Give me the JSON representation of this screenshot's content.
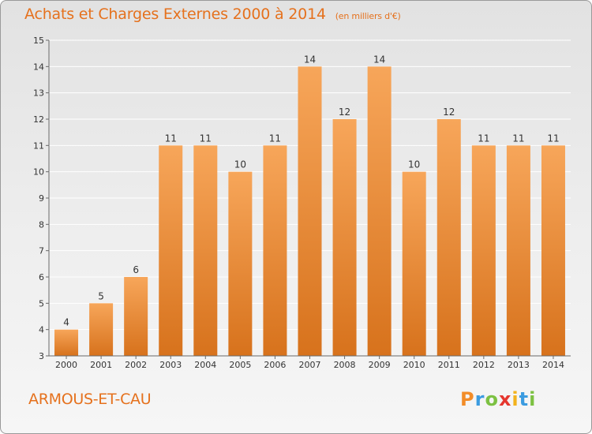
{
  "header": {
    "title": "Achats et Charges Externes 2000 à 2014",
    "subtitle": "(en milliers d'€)"
  },
  "footer": {
    "commune": "ARMOUS-ET-CAU",
    "logo": {
      "p": "P",
      "r": "r",
      "o": "o",
      "x": "x",
      "i1": "i",
      "t": "t",
      "i2": "i"
    }
  },
  "colors": {
    "title": "#e5711d",
    "bar_top": "#f7a65a",
    "bar_bottom": "#d7721c",
    "axis": "#6a6a6a",
    "grid": "#ffffff"
  },
  "chart_data": {
    "type": "bar",
    "title": "Achats et Charges Externes 2000 à 2014",
    "subtitle": "(en milliers d'€)",
    "categories": [
      "2000",
      "2001",
      "2002",
      "2003",
      "2004",
      "2005",
      "2006",
      "2007",
      "2008",
      "2009",
      "2010",
      "2011",
      "2012",
      "2013",
      "2014"
    ],
    "values": [
      4,
      5,
      6,
      11,
      11,
      10,
      11,
      14,
      12,
      14,
      10,
      12,
      11,
      11,
      11
    ],
    "data_labels": [
      "4",
      "5",
      "6",
      "11",
      "11",
      "10",
      "11",
      "14",
      "12",
      "14",
      "10",
      "12",
      "11",
      "11",
      "11"
    ],
    "ylim": [
      3,
      15
    ],
    "yticks": [
      3,
      4,
      5,
      6,
      7,
      8,
      9,
      10,
      11,
      12,
      13,
      14,
      15
    ],
    "xlabel": "",
    "ylabel": "",
    "grid": true,
    "legend": "none"
  }
}
